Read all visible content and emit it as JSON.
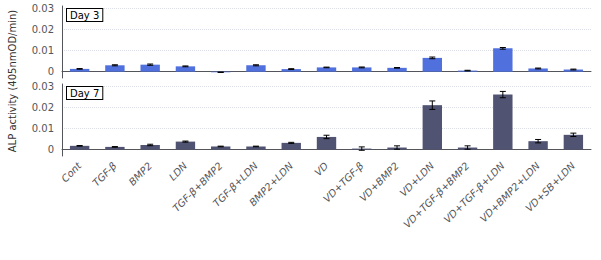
{
  "chart_data": [
    {
      "type": "bar",
      "categories": [
        "Cont",
        "TGF-β",
        "BMP2",
        "LDN",
        "TGF-β+BMP2",
        "TGF-β+LDN",
        "BMP2+LDN",
        "VD",
        "VD+TGF-β",
        "VD+BMP2",
        "VD+LDN",
        "VD+TGF-β+BMP2",
        "VD+TGF-β+LDN",
        "VD+BMP2+LDN",
        "VD+SB+LDN"
      ],
      "values": [
        0.0013,
        0.003,
        0.0033,
        0.0025,
        -0.0003,
        0.003,
        0.0012,
        0.002,
        0.002,
        0.0018,
        0.0065,
        0.0005,
        0.011,
        0.0015,
        0.001
      ],
      "errors": [
        0.00015,
        0.00025,
        0.0003,
        0.0002,
        0.0001,
        0.00025,
        0.0002,
        0.00015,
        0.0002,
        0.00015,
        0.0004,
        0.00015,
        0.0004,
        0.0002,
        0.0002
      ],
      "ylim": [
        -0.003,
        0.031
      ],
      "yticks": [
        0,
        0.01,
        0.02,
        0.03
      ],
      "grid": true,
      "annotation": "Day 3",
      "ylabel": "ALP activity (405nmOD/min)",
      "tick_labels": "y"
    },
    {
      "type": "bar",
      "categories": [
        "Cont",
        "TGF-β",
        "BMP2",
        "LDN",
        "TGF-β+BMP2",
        "TGF-β+LDN",
        "BMP2+LDN",
        "VD",
        "VD+TGF-β",
        "VD+BMP2",
        "VD+LDN",
        "VD+TGF-β+BMP2",
        "VD+TGF-β+LDN",
        "VD+BMP2+LDN",
        "VD+SB+LDN"
      ],
      "values": [
        0.0018,
        0.0013,
        0.0022,
        0.0038,
        0.0015,
        0.0015,
        0.0032,
        0.006,
        0.0005,
        0.001,
        0.021,
        0.001,
        0.026,
        0.004,
        0.007
      ],
      "errors": [
        0.00015,
        0.00015,
        0.00035,
        0.00025,
        0.00015,
        0.00015,
        0.00025,
        0.0008,
        0.0008,
        0.0008,
        0.002,
        0.0008,
        0.0015,
        0.0008,
        0.0008
      ],
      "ylim": [
        -0.003,
        0.031
      ],
      "yticks": [
        0,
        0.01,
        0.02,
        0.03
      ],
      "grid": true,
      "annotation": "Day 7"
    }
  ]
}
